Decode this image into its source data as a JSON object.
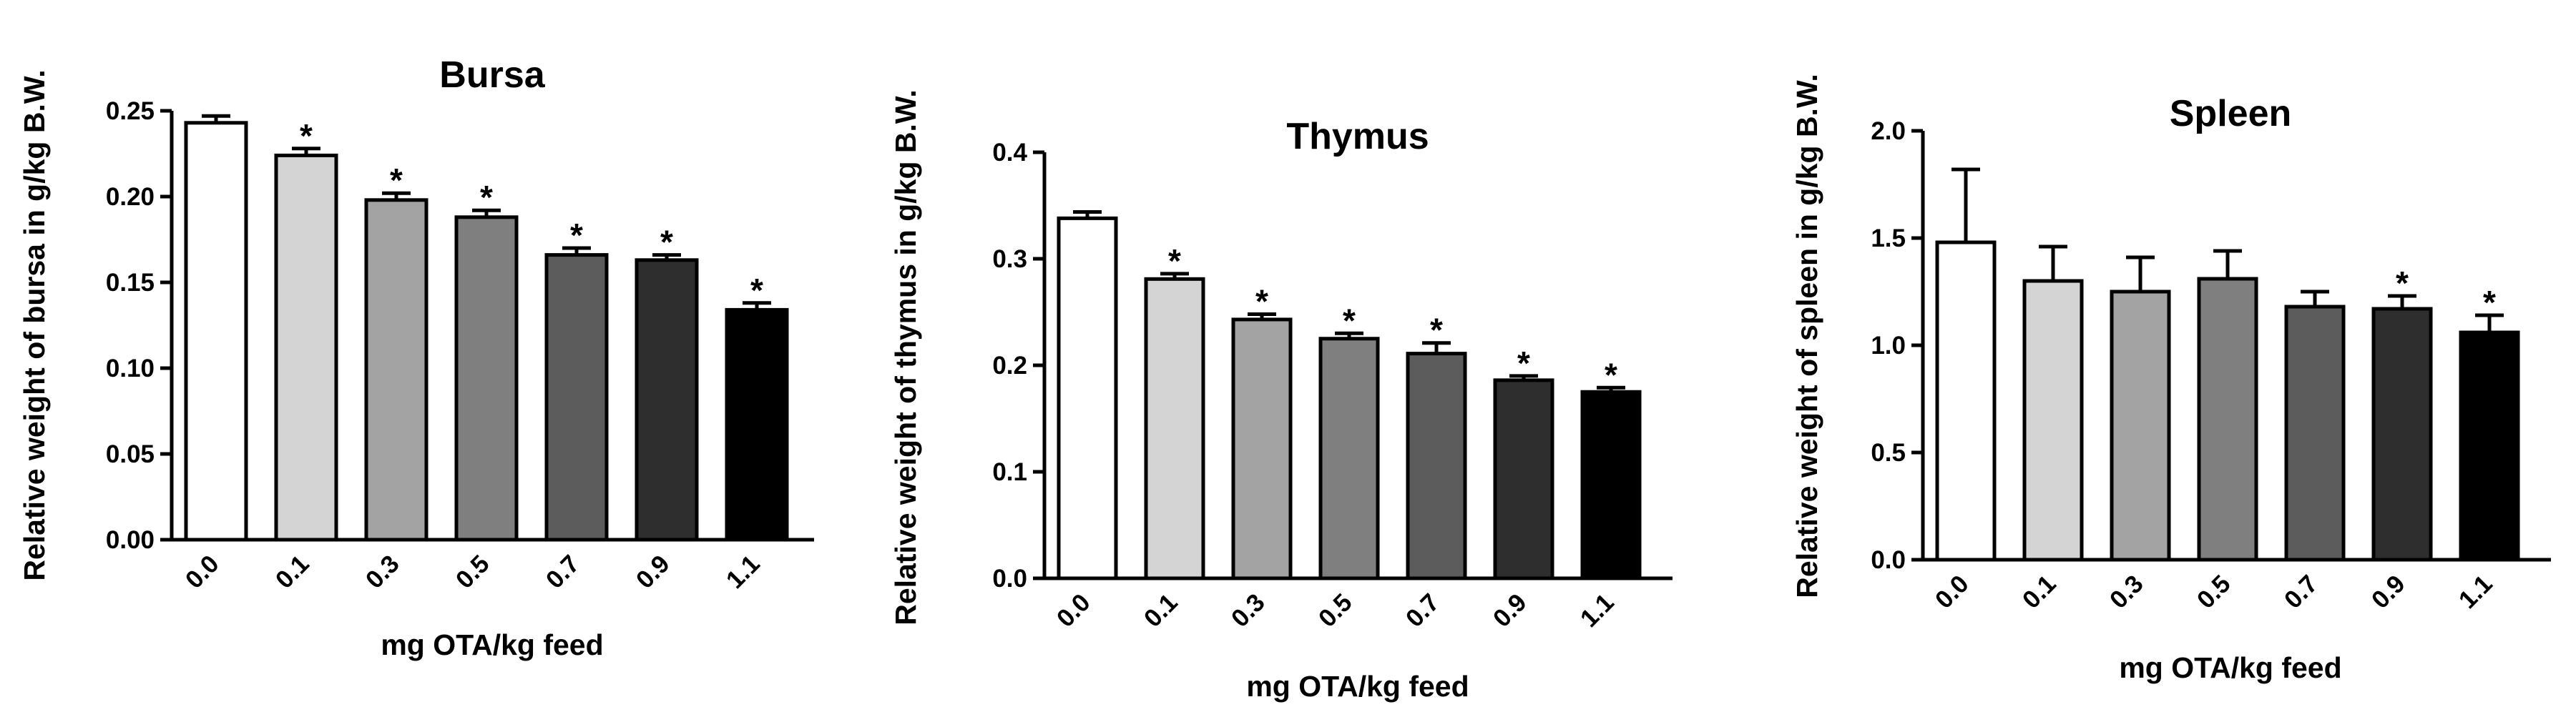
{
  "chart_data": [
    {
      "type": "bar",
      "title": "Bursa",
      "xlabel": "mg OTA/kg feed",
      "ylabel": "Relative weight of bursa in g/kg B.W.",
      "categories": [
        "0.0",
        "0.1",
        "0.3",
        "0.5",
        "0.7",
        "0.9",
        "1.1"
      ],
      "values": [
        0.243,
        0.224,
        0.198,
        0.188,
        0.166,
        0.163,
        0.134
      ],
      "errors": [
        0.004,
        0.004,
        0.004,
        0.004,
        0.004,
        0.003,
        0.004
      ],
      "significance": [
        "",
        "*",
        "*",
        "*",
        "*",
        "*",
        "*"
      ],
      "colors": [
        "#ffffff",
        "#d4d4d4",
        "#a3a3a3",
        "#7f7f7f",
        "#5c5c5c",
        "#2e2e2e",
        "#000000"
      ],
      "ylim": [
        0,
        0.25
      ],
      "yticks": [
        "0.00",
        "0.05",
        "0.10",
        "0.15",
        "0.20",
        "0.25"
      ]
    },
    {
      "type": "bar",
      "title": "Thymus",
      "xlabel": "mg OTA/kg feed",
      "ylabel": "Relative weight of thymus in g/kg B.W.",
      "categories": [
        "0.0",
        "0.1",
        "0.3",
        "0.5",
        "0.7",
        "0.9",
        "1.1"
      ],
      "values": [
        0.338,
        0.281,
        0.243,
        0.225,
        0.211,
        0.186,
        0.175
      ],
      "errors": [
        0.006,
        0.005,
        0.005,
        0.005,
        0.01,
        0.004,
        0.004
      ],
      "significance": [
        "",
        "*",
        "*",
        "*",
        "*",
        "*",
        "*"
      ],
      "colors": [
        "#ffffff",
        "#d4d4d4",
        "#a3a3a3",
        "#7f7f7f",
        "#5c5c5c",
        "#2e2e2e",
        "#000000"
      ],
      "ylim": [
        0,
        0.4
      ],
      "yticks": [
        "0.0",
        "0.1",
        "0.2",
        "0.3",
        "0.4"
      ]
    },
    {
      "type": "bar",
      "title": "Spleen",
      "xlabel": "mg OTA/kg feed",
      "ylabel": "Relative weight of spleen in g/kg B.W.",
      "categories": [
        "0.0",
        "0.1",
        "0.3",
        "0.5",
        "0.7",
        "0.9",
        "1.1"
      ],
      "values": [
        1.48,
        1.3,
        1.25,
        1.31,
        1.18,
        1.17,
        1.06
      ],
      "errors": [
        0.34,
        0.16,
        0.16,
        0.13,
        0.07,
        0.06,
        0.08
      ],
      "significance": [
        "",
        "",
        "",
        "",
        "",
        "*",
        "*"
      ],
      "colors": [
        "#ffffff",
        "#d4d4d4",
        "#a3a3a3",
        "#7f7f7f",
        "#5c5c5c",
        "#2e2e2e",
        "#000000"
      ],
      "ylim": [
        0,
        2.0
      ],
      "yticks": [
        "0.0",
        "0.5",
        "1.0",
        "1.5",
        "2.0"
      ]
    }
  ]
}
